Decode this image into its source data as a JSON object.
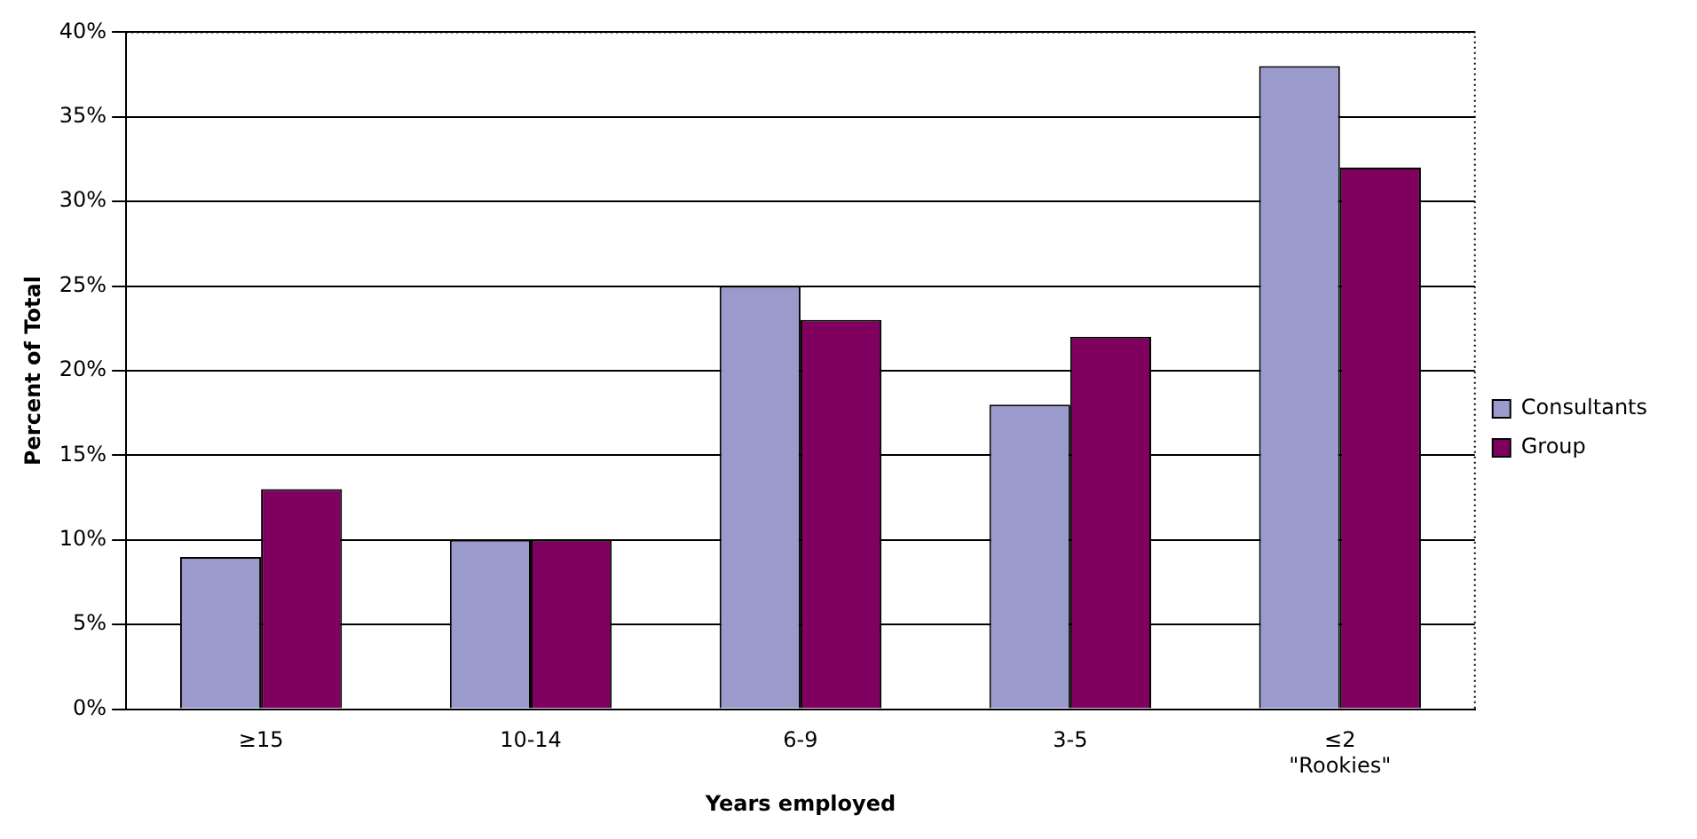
{
  "chart_data": {
    "type": "bar",
    "xlabel": "Years employed",
    "ylabel": "Percent of Total",
    "categories": [
      "≥15",
      "10-14",
      "6-9",
      "3-5",
      "≤2\n\"Rookies\""
    ],
    "series": [
      {
        "name": "Consultants",
        "color": "#9a9acc",
        "values": [
          9,
          10,
          25,
          18,
          38
        ]
      },
      {
        "name": "Group",
        "color": "#800060",
        "values": [
          13,
          10,
          23,
          22,
          32
        ]
      }
    ],
    "ylim": [
      0,
      40
    ],
    "yticks": [
      {
        "value": 0,
        "label": "0%"
      },
      {
        "value": 5,
        "label": "5%"
      },
      {
        "value": 10,
        "label": "10%"
      },
      {
        "value": 15,
        "label": "15%"
      },
      {
        "value": 20,
        "label": "20%"
      },
      {
        "value": 25,
        "label": "25%"
      },
      {
        "value": 30,
        "label": "30%"
      },
      {
        "value": 35,
        "label": "35%"
      },
      {
        "value": 40,
        "label": "40%"
      }
    ],
    "grid": "y",
    "legend": "right"
  }
}
